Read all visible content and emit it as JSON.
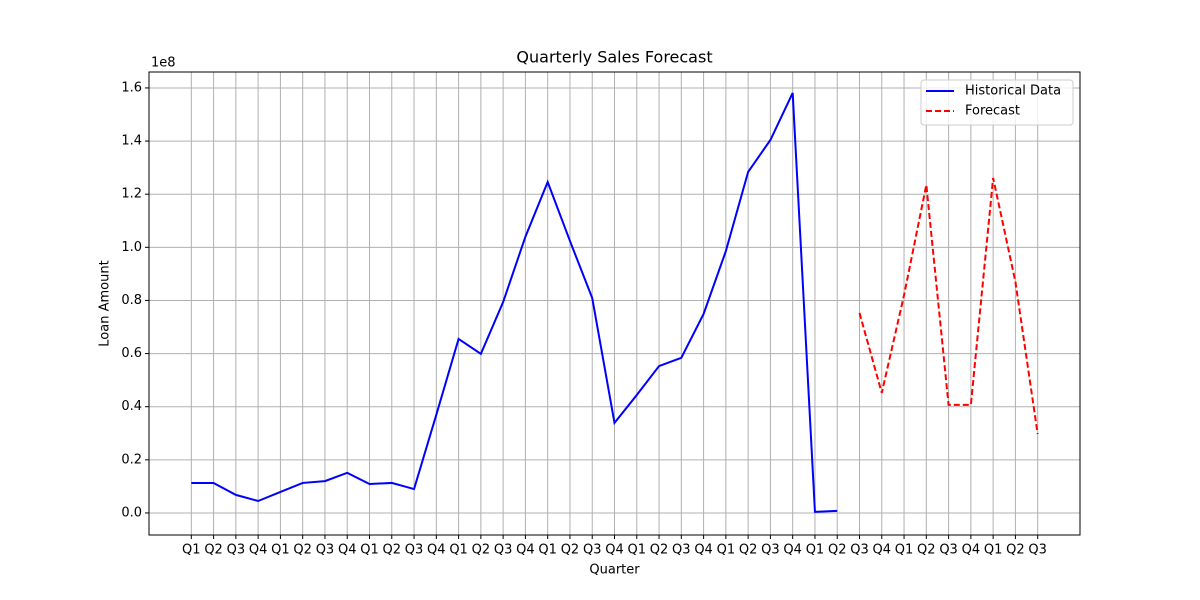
{
  "chart_data": {
    "type": "line",
    "title": "Quarterly Sales Forecast",
    "x_label": "Quarter",
    "y_label": "Loan Amount",
    "y_offset_label": "1e8",
    "categories": [
      "Q1",
      "Q2",
      "Q3",
      "Q4",
      "Q1",
      "Q2",
      "Q3",
      "Q4",
      "Q1",
      "Q2",
      "Q3",
      "Q4",
      "Q1",
      "Q2",
      "Q3",
      "Q4",
      "Q1",
      "Q2",
      "Q3",
      "Q4",
      "Q1",
      "Q2",
      "Q3",
      "Q4",
      "Q1",
      "Q2",
      "Q3",
      "Q4",
      "Q1",
      "Q2",
      "Q3",
      "Q4",
      "Q1",
      "Q2",
      "Q3",
      "Q4",
      "Q1",
      "Q2",
      "Q3"
    ],
    "series": [
      {
        "name": "Historical Data",
        "color": "#0000ff",
        "dash": "solid",
        "values": [
          11300000,
          11300000,
          6800000,
          4500000,
          7900000,
          11300000,
          12000000,
          15100000,
          10900000,
          11300000,
          9000000,
          37000000,
          65500000,
          59900000,
          79400000,
          104000000,
          124600000,
          102400000,
          80900000,
          33900000,
          44400000,
          55300000,
          58400000,
          74900000,
          98600000,
          128400000,
          140400000,
          158100000,
          400000,
          800000,
          null,
          null,
          null,
          null,
          null,
          null,
          null,
          null,
          null
        ]
      },
      {
        "name": "Forecast",
        "color": "#ff0000",
        "dash": "dashed",
        "values": [
          null,
          null,
          null,
          null,
          null,
          null,
          null,
          null,
          null,
          null,
          null,
          null,
          null,
          null,
          null,
          null,
          null,
          null,
          null,
          null,
          null,
          null,
          null,
          null,
          null,
          null,
          null,
          null,
          null,
          null,
          75300000,
          45200000,
          82000000,
          123500000,
          40700000,
          40700000,
          126100000,
          87000000,
          29700000
        ]
      }
    ],
    "ylim": [
      -8300000,
      166000000
    ],
    "yticks": [
      {
        "value": 0,
        "label": "0.0"
      },
      {
        "value": 20000000,
        "label": "0.2"
      },
      {
        "value": 40000000,
        "label": "0.4"
      },
      {
        "value": 60000000,
        "label": "0.6"
      },
      {
        "value": 80000000,
        "label": "0.8"
      },
      {
        "value": 100000000,
        "label": "1.0"
      },
      {
        "value": 120000000,
        "label": "1.2"
      },
      {
        "value": 140000000,
        "label": "1.4"
      },
      {
        "value": 160000000,
        "label": "1.6"
      }
    ],
    "grid": true,
    "legend": "upper right"
  }
}
